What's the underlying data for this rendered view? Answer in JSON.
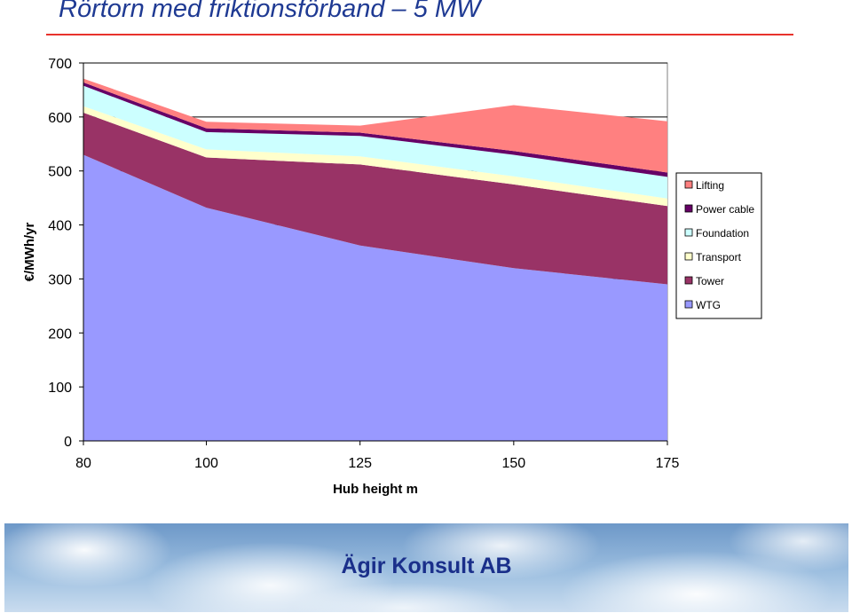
{
  "slide": {
    "title": "Rörtorn med friktionsförband – 5 MW",
    "footer": "Ägir Konsult AB"
  },
  "chart_data": {
    "type": "area",
    "stacked": true,
    "x": [
      80,
      100,
      125,
      150,
      175
    ],
    "xlabel": "Hub height m",
    "ylabel": "€/MWh/yr",
    "ylim": [
      0,
      700
    ],
    "yticks": [
      0,
      100,
      200,
      300,
      400,
      500,
      600,
      700
    ],
    "xticks": [
      80,
      100,
      125,
      150,
      175
    ],
    "grid": "horizontal",
    "legend_position": "right",
    "series": [
      {
        "name": "WTG",
        "color": "#9999ff",
        "values": [
          530,
          432,
          362,
          320,
          290
        ]
      },
      {
        "name": "Tower",
        "color": "#993366",
        "values": [
          78,
          93,
          150,
          155,
          145
        ]
      },
      {
        "name": "Transport",
        "color": "#ffffcc",
        "values": [
          12,
          15,
          15,
          15,
          14
        ]
      },
      {
        "name": "Foundation",
        "color": "#ccffff",
        "values": [
          38,
          32,
          38,
          40,
          40
        ]
      },
      {
        "name": "Power cable",
        "color": "#660066",
        "values": [
          6,
          7,
          6,
          7,
          8
        ]
      },
      {
        "name": "Lifting",
        "color": "#ff8080",
        "values": [
          7,
          12,
          13,
          85,
          95
        ]
      }
    ]
  }
}
